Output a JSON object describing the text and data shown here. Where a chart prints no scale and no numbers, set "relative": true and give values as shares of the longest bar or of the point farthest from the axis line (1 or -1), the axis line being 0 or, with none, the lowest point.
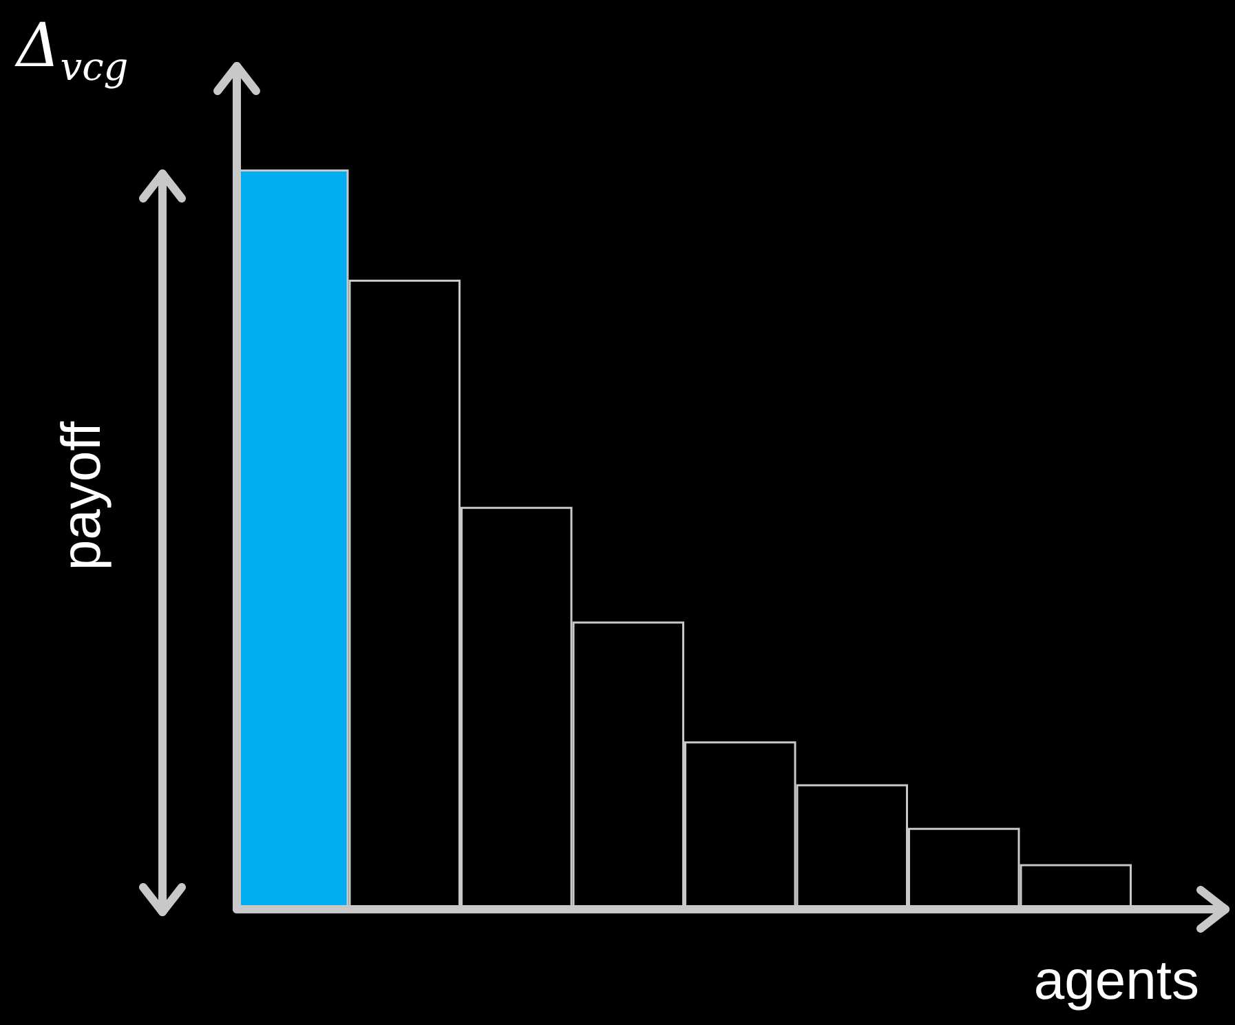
{
  "chart_data": {
    "type": "bar",
    "relative": true,
    "ylabel": "Δ$_{vcg}$",
    "xlabel": "agents",
    "annotations": [
      "payoff"
    ],
    "categories": [
      null,
      null,
      null,
      null,
      null,
      null,
      null,
      null
    ],
    "values": [
      1,
      0.851,
      0.544,
      0.389,
      0.227,
      0.169,
      0.11,
      0.061
    ],
    "colors": [
      "#00aeef",
      "#000000",
      "#000000",
      "#000000",
      "#000000",
      "#000000",
      "#000000",
      "#000000"
    ],
    "grid": false
  }
}
